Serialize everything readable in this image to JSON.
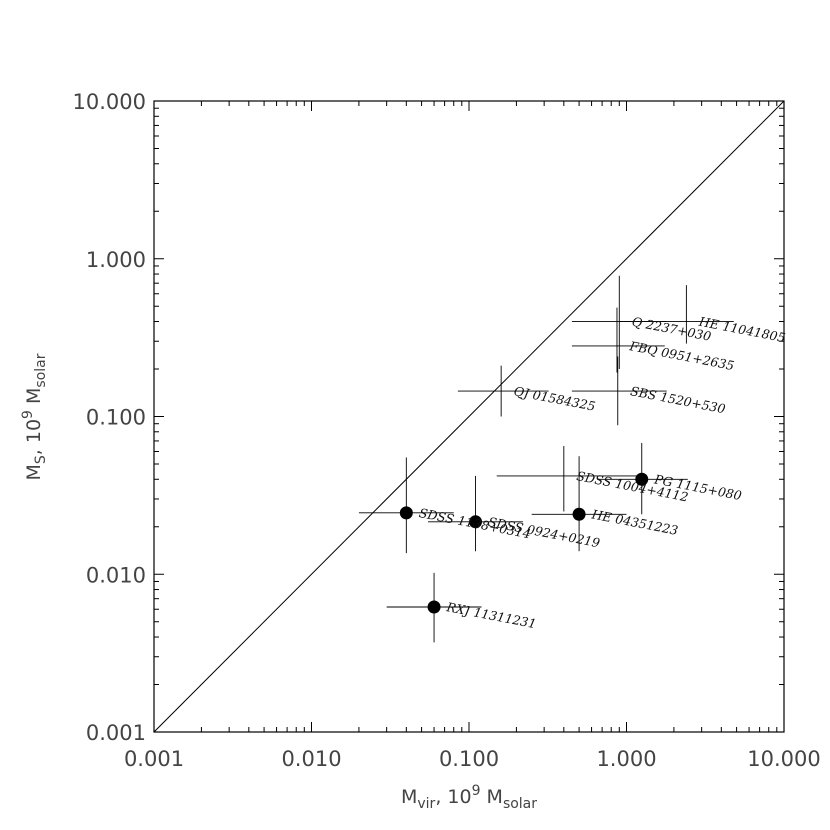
{
  "chart_data": {
    "type": "scatter",
    "x_scale": "log",
    "y_scale": "log",
    "xlim": [
      0.001,
      10.0
    ],
    "ylim": [
      0.001,
      10.0
    ],
    "x_ticks": [
      "0.001",
      "0.010",
      "0.100",
      "1.000",
      "10.000"
    ],
    "y_ticks": [
      "0.001",
      "0.010",
      "0.100",
      "1.000",
      "10.000"
    ],
    "xlabel": {
      "main": "M",
      "sub": "vir",
      "unit": ", 10",
      "sup": "9",
      "unit2": " M",
      "sub2": "solar"
    },
    "ylabel": {
      "main": "M",
      "sub": "S",
      "unit": ", 10",
      "sup": "9",
      "unit2": " M",
      "sub2": "solar"
    },
    "reference_line": "y = x",
    "grid": false,
    "points": [
      {
        "label": "HE 11041805",
        "x": 2.4,
        "y": 0.4,
        "xerr": [
          0.9,
          4.8
        ],
        "yerr": [
          0.29,
          0.68
        ],
        "marker": "none"
      },
      {
        "label": "Q 2237+030",
        "x": 0.9,
        "y": 0.4,
        "xerr": [
          0.45,
          1.8
        ],
        "yerr": [
          0.2,
          0.78
        ],
        "marker": "none"
      },
      {
        "label": "FBQ 0951+2635",
        "x": 0.87,
        "y": 0.28,
        "xerr": [
          0.45,
          1.75
        ],
        "yerr": [
          0.19,
          0.49
        ],
        "marker": "none"
      },
      {
        "label": "SBS 1520+530",
        "x": 0.88,
        "y": 0.145,
        "xerr": [
          0.45,
          1.8
        ],
        "yerr": [
          0.088,
          0.24
        ],
        "marker": "none"
      },
      {
        "label": "QJ 01584325",
        "x": 0.16,
        "y": 0.145,
        "xerr": [
          0.085,
          0.32
        ],
        "yerr": [
          0.1,
          0.21
        ],
        "marker": "none"
      },
      {
        "label": "PG 1115+080",
        "x": 1.25,
        "y": 0.04,
        "xerr": [
          0.65,
          2.45
        ],
        "yerr": [
          0.024,
          0.068
        ],
        "marker": "dot"
      },
      {
        "label": "SDSS 1004+4112",
        "x": 0.4,
        "y": 0.042,
        "xerr": [
          0.15,
          1.2
        ],
        "yerr": [
          0.025,
          0.065
        ],
        "marker": "none"
      },
      {
        "label": "HE 04351223",
        "x": 0.5,
        "y": 0.024,
        "xerr": [
          0.25,
          1.0
        ],
        "yerr": [
          0.014,
          0.056
        ],
        "marker": "dot"
      },
      {
        "label": "SDSS 0924+0219",
        "x": 0.11,
        "y": 0.0215,
        "xerr": [
          0.055,
          0.22
        ],
        "yerr": [
          0.014,
          0.042
        ],
        "marker": "dot"
      },
      {
        "label": "SDSS 1138+0314",
        "x": 0.04,
        "y": 0.0245,
        "xerr": [
          0.02,
          0.08
        ],
        "yerr": [
          0.0136,
          0.055
        ],
        "marker": "dot"
      },
      {
        "label": "RXJ 11311231",
        "x": 0.06,
        "y": 0.0062,
        "xerr": [
          0.03,
          0.12
        ],
        "yerr": [
          0.0037,
          0.0102
        ],
        "marker": "dot"
      }
    ]
  }
}
